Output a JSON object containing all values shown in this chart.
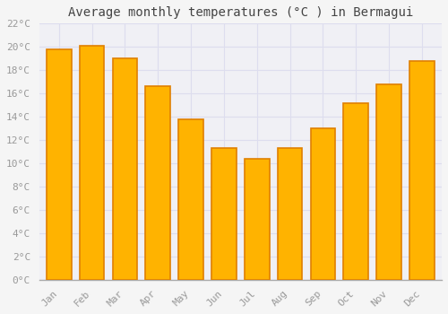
{
  "title": "Average monthly temperatures (°C ) in Bermagui",
  "months": [
    "Jan",
    "Feb",
    "Mar",
    "Apr",
    "May",
    "Jun",
    "Jul",
    "Aug",
    "Sep",
    "Oct",
    "Nov",
    "Dec"
  ],
  "values": [
    19.8,
    20.1,
    19.0,
    16.6,
    13.8,
    11.3,
    10.4,
    11.3,
    13.0,
    15.2,
    16.8,
    18.8
  ],
  "bar_color_face": "#FFB300",
  "bar_color_edge": "#E08000",
  "ylim": [
    0,
    22
  ],
  "yticks": [
    0,
    2,
    4,
    6,
    8,
    10,
    12,
    14,
    16,
    18,
    20,
    22
  ],
  "background_color": "#f5f5f5",
  "plot_area_color": "#f0f0f5",
  "grid_color": "#ddddee",
  "title_fontsize": 10,
  "tick_fontsize": 8,
  "font_family": "monospace",
  "tick_color": "#999999"
}
